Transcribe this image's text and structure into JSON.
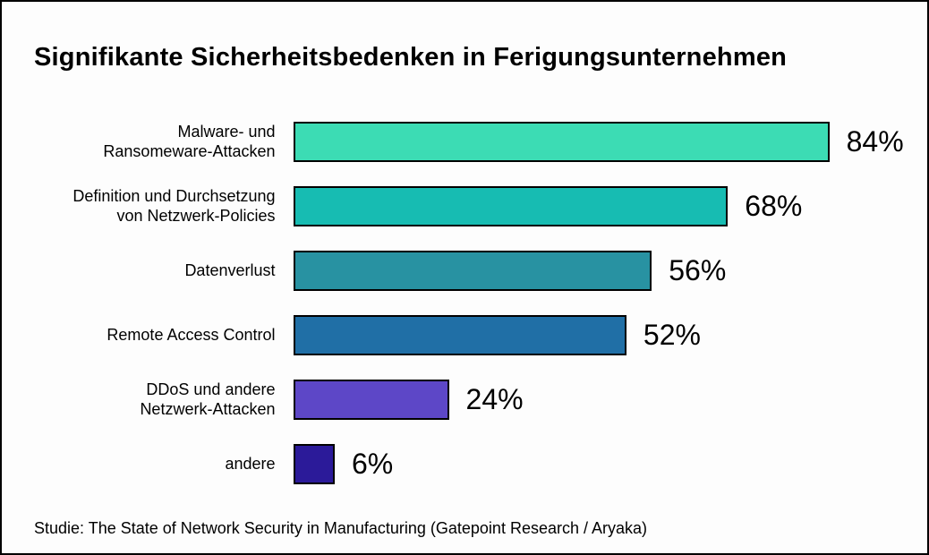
{
  "chart_data": {
    "type": "bar",
    "orientation": "horizontal",
    "title": "Signifikante Sicherheitsbedenken in Ferigungsunternehmen",
    "categories": [
      "Malware- und\nRansomeware-Attacken",
      "Definition und Durchsetzung\nvon Netzwerk-Policies",
      "Datenverlust",
      "Remote Access Control",
      "DDoS und andere\nNetzwerk-Attacken",
      "andere"
    ],
    "values": [
      84,
      68,
      56,
      52,
      24,
      6
    ],
    "value_labels": [
      "84%",
      "68%",
      "56%",
      "52%",
      "24%",
      "6%"
    ],
    "bar_colors": [
      "#3cdcb4",
      "#17bcb2",
      "#2892a2",
      "#206fa6",
      "#5d47c7",
      "#2b1a99"
    ],
    "bar_border_color": "#000000",
    "xlabel": "",
    "ylabel": "",
    "xlim": [
      0,
      100
    ],
    "grid": false,
    "legend": false,
    "source_note": "Studie: The State of Network Security in Manufacturing (Gatepoint Research / Aryaka)"
  }
}
